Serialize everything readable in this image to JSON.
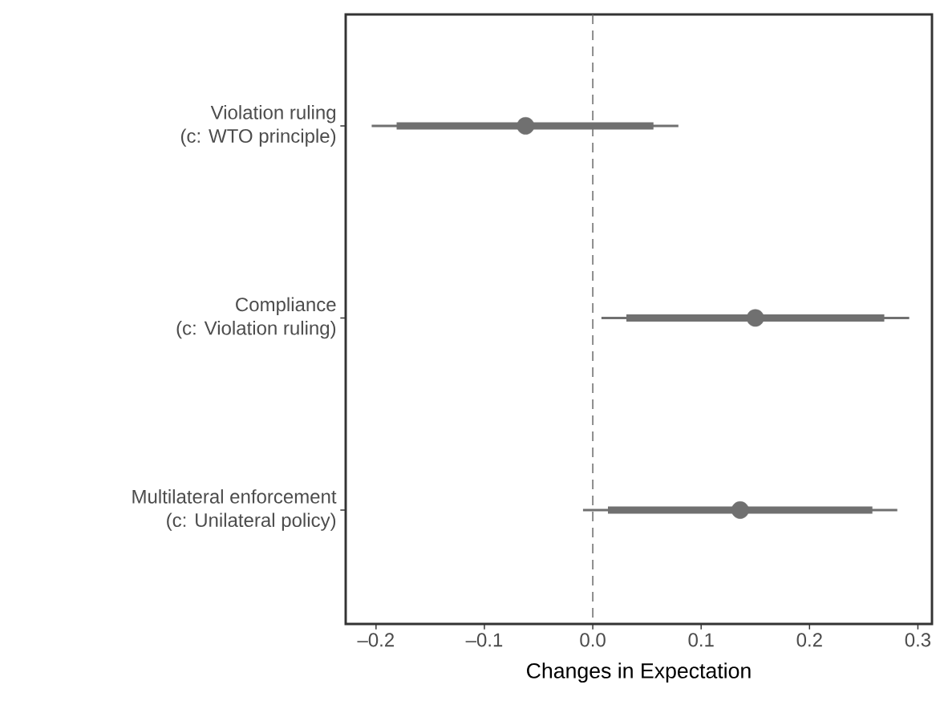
{
  "chart_data": {
    "type": "scatter",
    "orientation": "horizontal",
    "xlabel": "Changes in Expectation",
    "categories": [
      "Violation ruling\n(c: WTO principle)",
      "Compliance\n(c: Violation ruling)",
      "Multilateral enforcement\n(c: Unilateral policy)"
    ],
    "series": [
      {
        "type": "bar",
        "color": "#707070",
        "base": [
          -0.181,
          0.031,
          0.014
        ],
        "values": [
          0.237,
          0.238,
          0.244
        ]
      },
      {
        "color": "#707070",
        "marker": "circle",
        "values": [
          -0.062,
          0.15,
          0.136
        ],
        "errors": [
          [
            -0.204,
            0.079
          ],
          [
            0.008,
            0.292
          ],
          [
            -0.009,
            0.281
          ]
        ]
      }
    ],
    "xlim": [
      -0.228,
      0.313
    ],
    "xticks": [
      {
        "value": -0.2,
        "label": "–0.2"
      },
      {
        "value": -0.1,
        "label": "–0.1"
      },
      "0.0",
      0.1,
      0.2,
      0.3
    ],
    "ref_lines": [
      {
        "axis": "x",
        "value": 0,
        "color": "#666666",
        "line_style": "dashed"
      }
    ]
  }
}
